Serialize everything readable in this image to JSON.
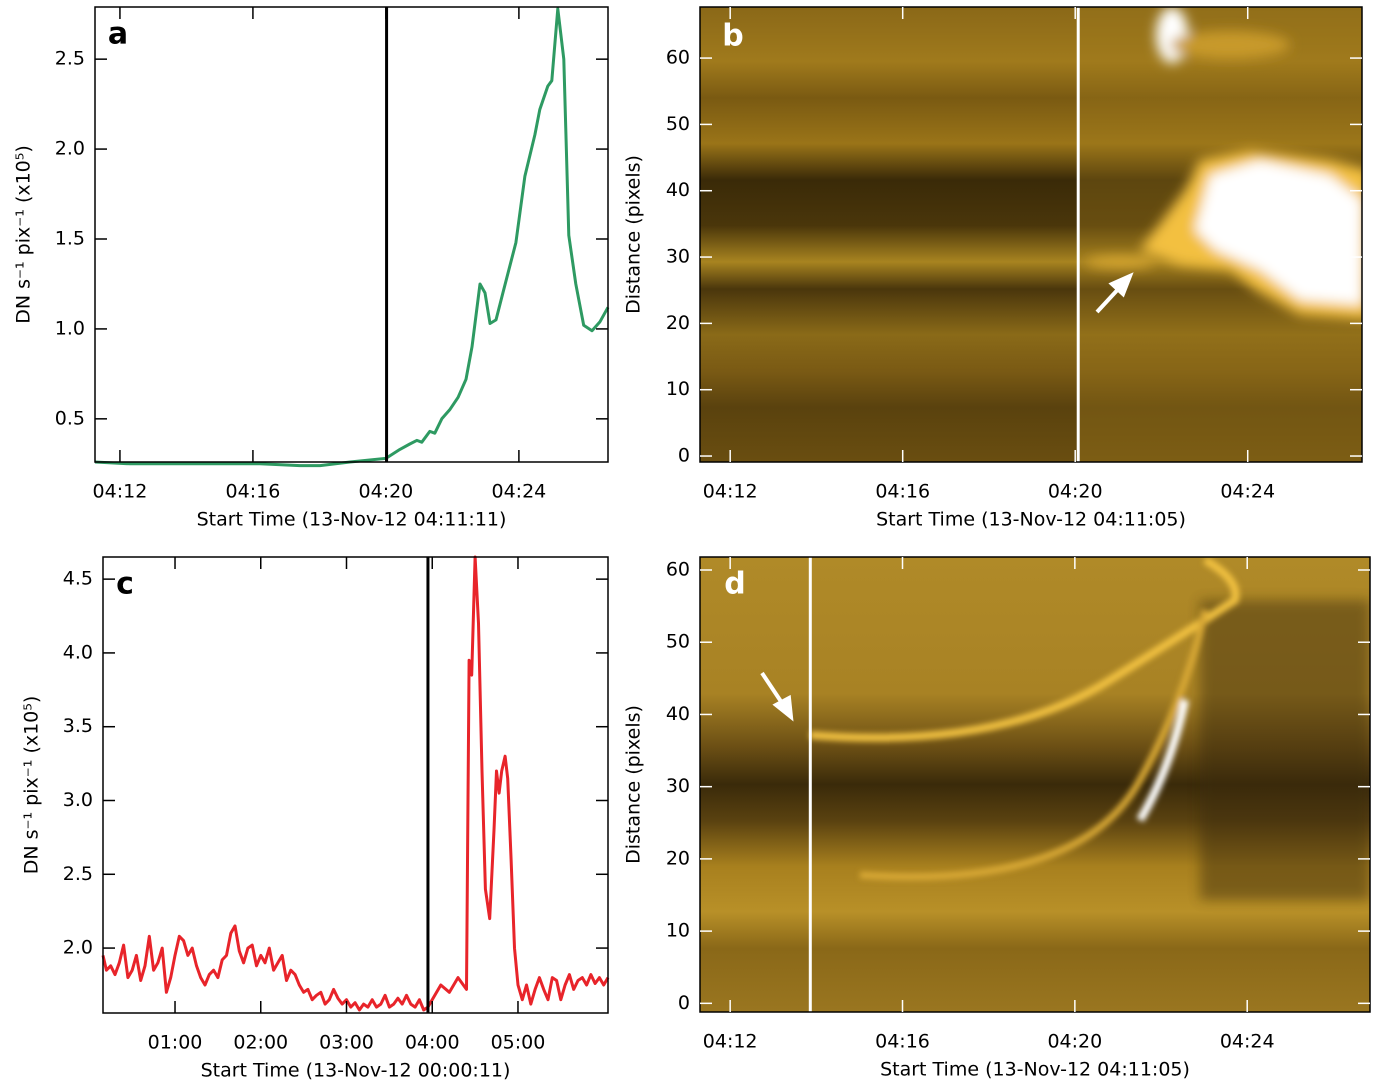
{
  "chart_data": [
    {
      "type": "line",
      "panel_label": "a",
      "xlabel": "Start Time (13-Nov-12 04:11:11)",
      "ylabel": "DN s⁻¹ pix⁻¹ (x10⁵)",
      "color": "#2e9a62",
      "annotation_color": "#000000",
      "x": [
        11.25,
        12.3,
        14.41,
        16.21,
        17.41,
        18.02,
        18.92,
        20.0,
        20.42,
        20.72,
        20.93,
        21.08,
        21.32,
        21.47,
        21.68,
        21.92,
        22.17,
        22.41,
        22.59,
        22.83,
        22.98,
        23.13,
        23.31,
        23.52,
        23.91,
        24.18,
        24.48,
        24.63,
        24.87,
        24.99,
        25.17,
        25.35,
        25.5,
        25.71,
        25.95,
        26.2,
        26.44,
        26.68
      ],
      "values": [
        0.26,
        0.25,
        0.25,
        0.25,
        0.24,
        0.24,
        0.26,
        0.28,
        0.33,
        0.36,
        0.38,
        0.37,
        0.43,
        0.42,
        0.5,
        0.55,
        0.62,
        0.72,
        0.9,
        1.25,
        1.2,
        1.03,
        1.05,
        1.2,
        1.48,
        1.85,
        2.08,
        2.22,
        2.35,
        2.38,
        2.78,
        2.5,
        1.52,
        1.25,
        1.02,
        0.99,
        1.04,
        1.12
      ],
      "xlim": [
        11.25,
        26.68
      ],
      "ylim": [
        0.26,
        2.79
      ],
      "xticks": [
        {
          "value": 12,
          "label": "04:12"
        },
        {
          "value": 16,
          "label": "04:16"
        },
        {
          "value": 20,
          "label": "04:20"
        },
        {
          "value": 24,
          "label": "04:24"
        }
      ],
      "yticks": [
        0.5,
        {
          "value": 1,
          "label": "1.0"
        },
        1.5,
        {
          "value": 2,
          "label": "2.0"
        },
        2.5
      ],
      "vline": 20.02
    },
    {
      "type": "image",
      "panel_label": "b",
      "xlabel": "Start Time (13-Nov-12 04:11:05)",
      "ylabel": "Distance (pixels)",
      "annotation_color": "#ffffff",
      "xlim": [
        11.3,
        26.65
      ],
      "ylim": [
        -0.9,
        67.7
      ],
      "xticks": [
        {
          "value": 12,
          "label": "04:12"
        },
        {
          "value": 16,
          "label": "04:16"
        },
        {
          "value": 20,
          "label": "04:20"
        },
        {
          "value": 24,
          "label": "04:24"
        }
      ],
      "yticks": [
        0,
        10,
        20,
        30,
        40,
        50,
        60
      ],
      "vline": 20.07
    },
    {
      "type": "line",
      "panel_label": "c",
      "xlabel": "Start Time (13-Nov-12 00:00:11)",
      "ylabel": "DN s⁻¹ pix⁻¹ (x10⁵)",
      "color": "#e8242a",
      "annotation_color": "#000000",
      "x": [
        0.16,
        0.2,
        0.25,
        0.3,
        0.35,
        0.4,
        0.45,
        0.5,
        0.55,
        0.6,
        0.65,
        0.7,
        0.75,
        0.8,
        0.85,
        0.9,
        0.95,
        1.0,
        1.05,
        1.1,
        1.15,
        1.2,
        1.25,
        1.3,
        1.35,
        1.4,
        1.45,
        1.5,
        1.55,
        1.6,
        1.65,
        1.7,
        1.75,
        1.8,
        1.85,
        1.9,
        1.95,
        2.0,
        2.05,
        2.1,
        2.15,
        2.2,
        2.25,
        2.3,
        2.35,
        2.4,
        2.45,
        2.5,
        2.55,
        2.6,
        2.65,
        2.7,
        2.75,
        2.8,
        2.85,
        2.9,
        2.95,
        3.0,
        3.05,
        3.1,
        3.15,
        3.2,
        3.25,
        3.3,
        3.35,
        3.4,
        3.45,
        3.5,
        3.55,
        3.6,
        3.65,
        3.7,
        3.75,
        3.8,
        3.85,
        3.9,
        3.95,
        4.0,
        4.1,
        4.2,
        4.3,
        4.4,
        4.43,
        4.46,
        4.5,
        4.54,
        4.58,
        4.62,
        4.67,
        4.72,
        4.75,
        4.78,
        4.81,
        4.85,
        4.88,
        4.92,
        4.96,
        5.0,
        5.05,
        5.1,
        5.15,
        5.2,
        5.25,
        5.3,
        5.35,
        5.4,
        5.45,
        5.5,
        5.55,
        5.6,
        5.65,
        5.7,
        5.75,
        5.8,
        5.85,
        5.9,
        5.95,
        6.0,
        6.05
      ],
      "values": [
        1.95,
        1.85,
        1.88,
        1.82,
        1.9,
        2.02,
        1.8,
        1.85,
        1.95,
        1.78,
        1.88,
        2.08,
        1.85,
        1.9,
        2.0,
        1.7,
        1.8,
        1.95,
        2.08,
        2.05,
        1.95,
        2.0,
        1.88,
        1.8,
        1.75,
        1.82,
        1.85,
        1.8,
        1.92,
        1.95,
        2.1,
        2.15,
        1.98,
        1.9,
        2.0,
        2.02,
        1.88,
        1.95,
        1.9,
        2.0,
        1.85,
        1.9,
        1.95,
        1.78,
        1.85,
        1.82,
        1.75,
        1.7,
        1.72,
        1.65,
        1.68,
        1.7,
        1.62,
        1.65,
        1.72,
        1.66,
        1.62,
        1.65,
        1.6,
        1.63,
        1.58,
        1.62,
        1.6,
        1.65,
        1.6,
        1.62,
        1.68,
        1.6,
        1.62,
        1.66,
        1.62,
        1.68,
        1.62,
        1.6,
        1.65,
        1.58,
        1.6,
        1.65,
        1.75,
        1.7,
        1.8,
        1.72,
        3.95,
        3.85,
        4.65,
        4.2,
        3.2,
        2.4,
        2.2,
        2.8,
        3.2,
        3.05,
        3.2,
        3.3,
        3.15,
        2.6,
        2.0,
        1.75,
        1.65,
        1.75,
        1.62,
        1.72,
        1.8,
        1.72,
        1.65,
        1.8,
        1.78,
        1.65,
        1.75,
        1.82,
        1.72,
        1.78,
        1.8,
        1.75,
        1.82,
        1.76,
        1.8,
        1.75,
        1.8
      ],
      "xlim": [
        0.16,
        6.05
      ],
      "ylim": [
        1.56,
        4.65
      ],
      "xticks": [
        {
          "value": 1,
          "label": "01:00"
        },
        {
          "value": 2,
          "label": "02:00"
        },
        {
          "value": 3,
          "label": "03:00"
        },
        {
          "value": 4,
          "label": "04:00"
        },
        {
          "value": 5,
          "label": "05:00"
        }
      ],
      "yticks": [
        {
          "value": 2,
          "label": "2.0"
        },
        2.5,
        {
          "value": 3,
          "label": "3.0"
        },
        3.5,
        {
          "value": 4,
          "label": "4.0"
        },
        4.5
      ],
      "vline": 3.95
    },
    {
      "type": "image",
      "panel_label": "d",
      "xlabel": "Start Time (13-Nov-12 04:11:05)",
      "ylabel": "Distance (pixels)",
      "annotation_color": "#ffffff",
      "xlim": [
        11.3,
        26.85
      ],
      "ylim": [
        -1.2,
        61.8
      ],
      "xticks": [
        {
          "value": 12,
          "label": "04:12"
        },
        {
          "value": 16,
          "label": "04:16"
        },
        {
          "value": 20,
          "label": "04:20"
        },
        {
          "value": 24,
          "label": "04:24"
        }
      ],
      "yticks": [
        0,
        10,
        20,
        30,
        40,
        50,
        60
      ],
      "vline": 13.86
    }
  ]
}
